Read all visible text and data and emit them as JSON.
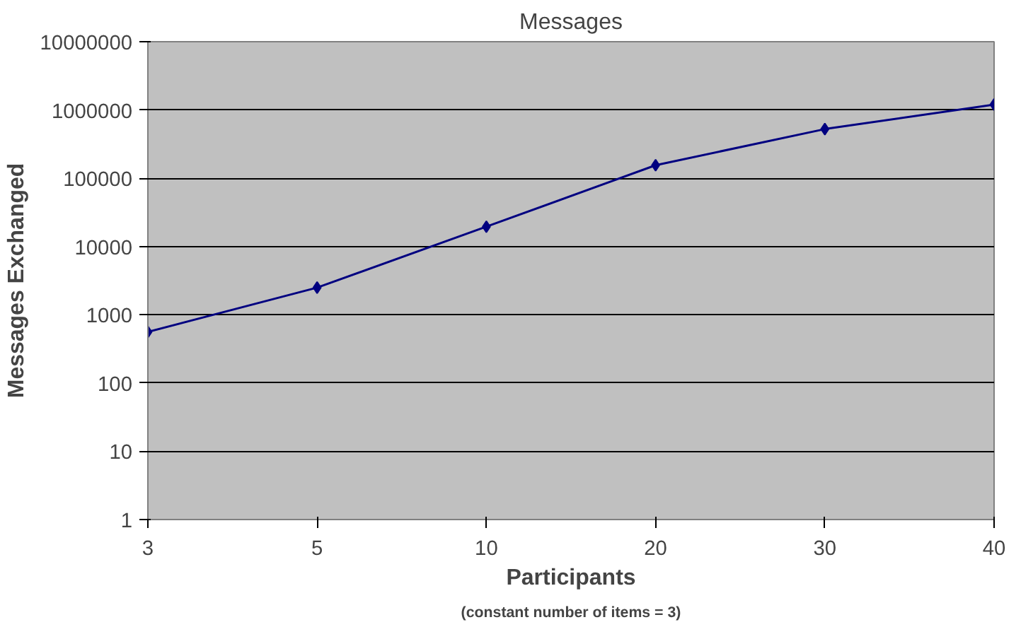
{
  "chart_data": {
    "type": "line",
    "title": "Messages",
    "xlabel": "Participants",
    "ylabel": "Messages Exchanged",
    "annotations": [
      "(constant number of items = 3)"
    ],
    "categories": [
      "3",
      "5",
      "10",
      "20",
      "30",
      "40"
    ],
    "series": [
      {
        "color": "#000080",
        "values": [
          560,
          2500,
          19500,
          155000,
          525000,
          1200000
        ]
      }
    ],
    "log": "y",
    "ylim": [
      1,
      10000000
    ],
    "yticks": [
      1,
      10,
      100,
      1000,
      10000,
      100000,
      1000000,
      10000000
    ],
    "grid": "y",
    "marker": "diamond",
    "line_style": "solid"
  }
}
